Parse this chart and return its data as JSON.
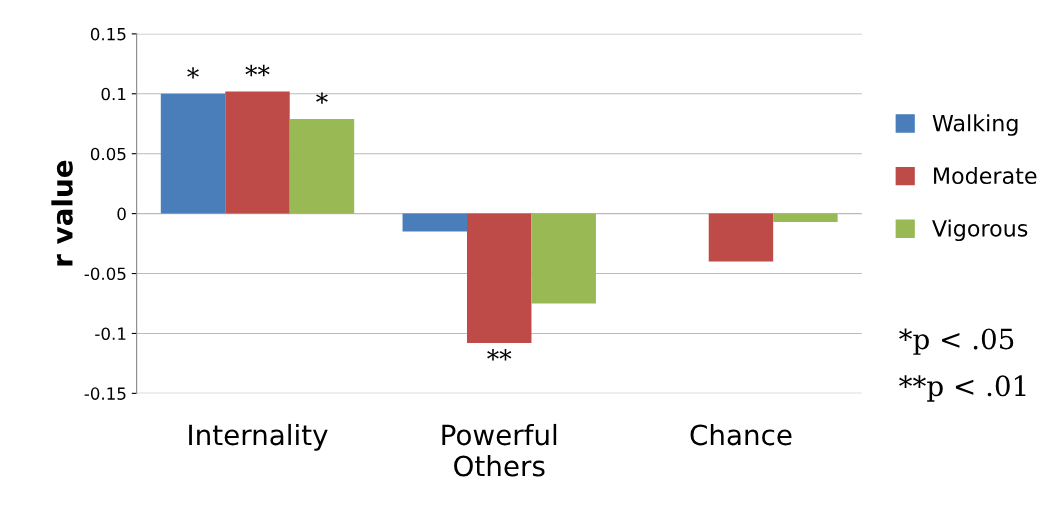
{
  "chart_data": {
    "type": "bar",
    "ylabel": "r value",
    "categories": [
      "Internality",
      "Powerful\nOthers",
      "Chance"
    ],
    "series": [
      {
        "name": "Walking",
        "color": "#4a7ebb",
        "values": [
          0.1,
          -0.015,
          0
        ],
        "value_labels": [
          "*",
          null,
          null
        ]
      },
      {
        "name": "Moderate",
        "color": "#be4b48",
        "values": [
          0.102,
          -0.108,
          -0.04
        ],
        "value_labels": [
          "**",
          "**",
          null
        ]
      },
      {
        "name": "Vigorous",
        "color": "#98b954",
        "values": [
          0.079,
          -0.075,
          -0.007
        ],
        "value_labels": [
          "*",
          null,
          null
        ]
      }
    ],
    "ylim": [
      -0.15,
      0.15
    ],
    "yticks": [
      -0.15,
      -0.1,
      -0.05,
      0,
      0.05,
      0.1,
      0.15
    ],
    "grid": "y",
    "legend": "right",
    "annotations": [
      "*p < .05",
      "**p < .01"
    ]
  }
}
